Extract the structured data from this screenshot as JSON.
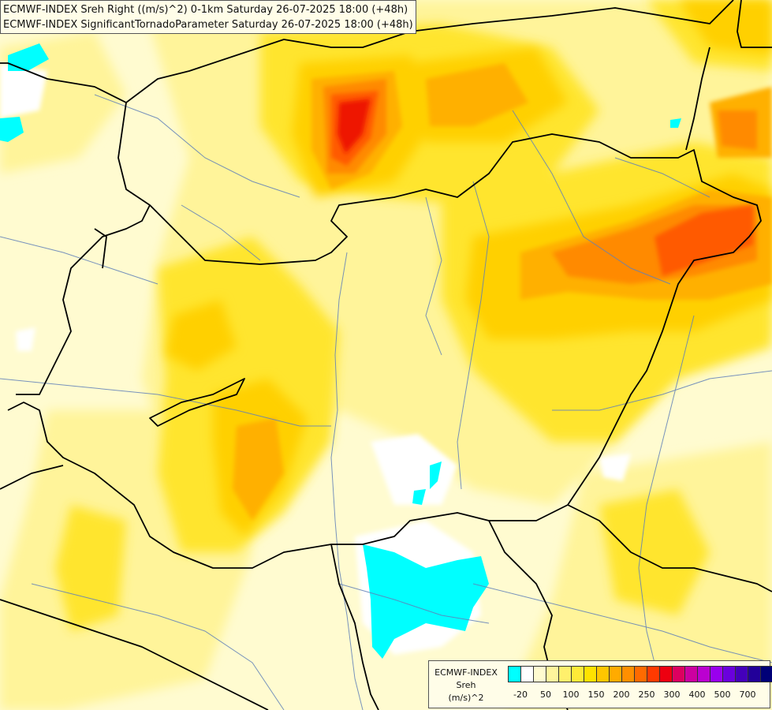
{
  "header": {
    "line1": "ECMWF-INDEX Sreh Right ((m/s)^2) 0-1km Saturday 26-07-2025 18:00 (+48h)",
    "line2": "ECMWF-INDEX SignificantTornadoParameter Saturday 26-07-2025 18:00 (+48h)"
  },
  "legend": {
    "title": "ECMWF-INDEX",
    "variable": "Sreh",
    "unit": "(m/s)^2",
    "colors": [
      "#00ffff",
      "#ffffff",
      "#fffbd0",
      "#fff59c",
      "#fff06c",
      "#ffea38",
      "#ffe200",
      "#ffc600",
      "#ffab00",
      "#ff8f00",
      "#ff6a00",
      "#ff3a00",
      "#ee0010",
      "#dd0060",
      "#cc00a0",
      "#bb00d0",
      "#9900ee",
      "#6a00dd",
      "#4400bb",
      "#220099",
      "#000077"
    ],
    "ticks": [
      "-20",
      "50",
      "100",
      "150",
      "200",
      "250",
      "300",
      "400",
      "500",
      "700"
    ]
  },
  "map": {
    "colors": {
      "background": "#fffbd0",
      "light_yellow": "#fff49a",
      "yellow": "#ffe52e",
      "gold": "#ffd000",
      "orange": "#ffb000",
      "dark_orange": "#ff8a00",
      "red_orange": "#ff5a00",
      "red": "#ee1500",
      "cyan": "#00ffff",
      "white": "#ffffff",
      "border": "#000000",
      "river": "#6080b8"
    }
  }
}
